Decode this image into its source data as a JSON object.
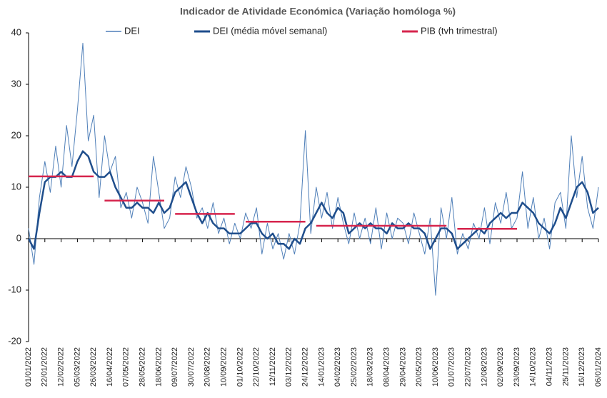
{
  "chart_data": {
    "type": "line",
    "title": "Indicador de Atividade Económica (Variação homóloga %)",
    "categories": [
      "01/01/2022",
      null,
      null,
      "22/01/2022",
      null,
      null,
      "12/02/2022",
      null,
      null,
      "05/03/2022",
      null,
      null,
      "26/03/2022",
      null,
      null,
      "16/04/2022",
      null,
      null,
      "07/05/2022",
      null,
      null,
      "28/05/2022",
      null,
      null,
      "18/06/2022",
      null,
      null,
      "09/07/2022",
      null,
      null,
      "30/07/2022",
      null,
      null,
      "20/08/2022",
      null,
      null,
      "10/09/2022",
      null,
      null,
      "01/10/2022",
      null,
      null,
      "22/10/2022",
      null,
      null,
      "12/11/2022",
      null,
      null,
      "03/12/2022",
      null,
      null,
      "24/12/2022",
      null,
      null,
      "14/01/2023",
      null,
      null,
      "04/02/2023",
      null,
      null,
      "25/02/2023",
      null,
      null,
      "18/03/2023",
      null,
      null,
      "08/04/2023",
      null,
      null,
      "29/04/2023",
      null,
      null,
      "20/05/2023",
      null,
      null,
      "10/06/2023",
      null,
      null,
      "01/07/2023",
      null,
      null,
      "22/07/2023",
      null,
      null,
      "12/08/2023",
      null,
      null,
      "02/09/2023",
      null,
      null,
      "23/09/2023",
      null,
      null,
      "14/10/2023",
      null,
      null,
      "04/11/2023",
      null,
      null,
      "25/11/2023",
      null,
      null,
      "16/12/2023",
      null,
      null,
      "06/01/2024"
    ],
    "series": [
      {
        "name": "DEI",
        "color": "#4f7fb8",
        "width": 1,
        "values": [
          2,
          -5,
          8,
          15,
          9,
          18,
          10,
          22,
          14,
          25,
          38,
          19,
          24,
          8,
          20,
          13,
          16,
          6,
          9,
          4,
          10,
          7,
          3,
          16,
          9,
          2,
          4,
          12,
          8,
          14,
          10,
          4,
          6,
          2,
          7,
          1,
          4,
          -1,
          3,
          0,
          5,
          2,
          6,
          -3,
          3,
          -2,
          1,
          -4,
          1,
          -3,
          3,
          21,
          1,
          10,
          4,
          9,
          2,
          8,
          3,
          -1,
          5,
          0,
          4,
          -1,
          6,
          -2,
          5,
          0,
          4,
          3,
          -1,
          5,
          1,
          -3,
          4,
          -11,
          6,
          0,
          8,
          -3,
          1,
          -2,
          3,
          0,
          6,
          -1,
          7,
          3,
          9,
          2,
          4,
          13,
          2,
          8,
          0,
          4,
          -2,
          7,
          9,
          2,
          20,
          8,
          16,
          6,
          2,
          10
        ]
      },
      {
        "name": "DEI (média móvel semanal)",
        "color": "#1f4e8c",
        "width": 2.5,
        "values": [
          0,
          -2,
          5,
          11,
          12,
          12,
          13,
          12,
          12,
          15,
          17,
          16,
          13,
          12,
          12,
          13,
          10,
          8,
          6,
          6,
          7,
          6,
          6,
          5,
          7,
          5,
          6,
          9,
          10,
          11,
          8,
          5,
          3,
          5,
          3,
          2,
          2,
          1,
          1,
          1,
          2,
          3,
          3,
          1,
          0,
          1,
          -1,
          -1,
          -2,
          0,
          -1,
          2,
          3,
          5,
          7,
          5,
          4,
          6,
          5,
          1,
          2,
          3,
          2,
          3,
          2,
          2,
          1,
          3,
          2,
          2,
          3,
          2,
          2,
          1,
          -2,
          0,
          2,
          2,
          1,
          -2,
          -1,
          0,
          1,
          2,
          1,
          3,
          4,
          5,
          4,
          5,
          5,
          7,
          6,
          5,
          3,
          2,
          1,
          3,
          6,
          4,
          7,
          10,
          11,
          9,
          5,
          6
        ]
      },
      {
        "name": "PIB (tvh trimestral)",
        "color": "#d6254d",
        "width": 2.5,
        "values": [
          12.1,
          12.1,
          12.1,
          12.1,
          12.1,
          12.1,
          12.1,
          12.1,
          12.1,
          12.1,
          12.1,
          12.1,
          12.1,
          null,
          7.4,
          7.4,
          7.4,
          7.4,
          7.4,
          7.4,
          7.4,
          7.4,
          7.4,
          7.4,
          7.4,
          7.4,
          null,
          4.8,
          4.8,
          4.8,
          4.8,
          4.8,
          4.8,
          4.8,
          4.8,
          4.8,
          4.8,
          4.8,
          4.8,
          null,
          3.3,
          3.3,
          3.3,
          3.3,
          3.3,
          3.3,
          3.3,
          3.3,
          3.3,
          3.3,
          3.3,
          3.3,
          null,
          2.5,
          2.5,
          2.5,
          2.5,
          2.5,
          2.5,
          2.5,
          2.5,
          2.5,
          2.5,
          2.5,
          2.5,
          2.5,
          2.5,
          2.5,
          2.5,
          2.5,
          2.5,
          2.5,
          2.5,
          2.5,
          2.5,
          2.5,
          2.5,
          2.5,
          null,
          1.9,
          1.9,
          1.9,
          1.9,
          1.9,
          1.9,
          1.9,
          1.9,
          1.9,
          1.9,
          1.9,
          1.9,
          null,
          null,
          null,
          null,
          null,
          null,
          null,
          null,
          null,
          null,
          null,
          null,
          null,
          null,
          null
        ]
      }
    ],
    "ylim": [
      -20,
      40
    ],
    "yticks": [
      -20,
      -10,
      0,
      10,
      20,
      30,
      40
    ],
    "grid": false
  }
}
